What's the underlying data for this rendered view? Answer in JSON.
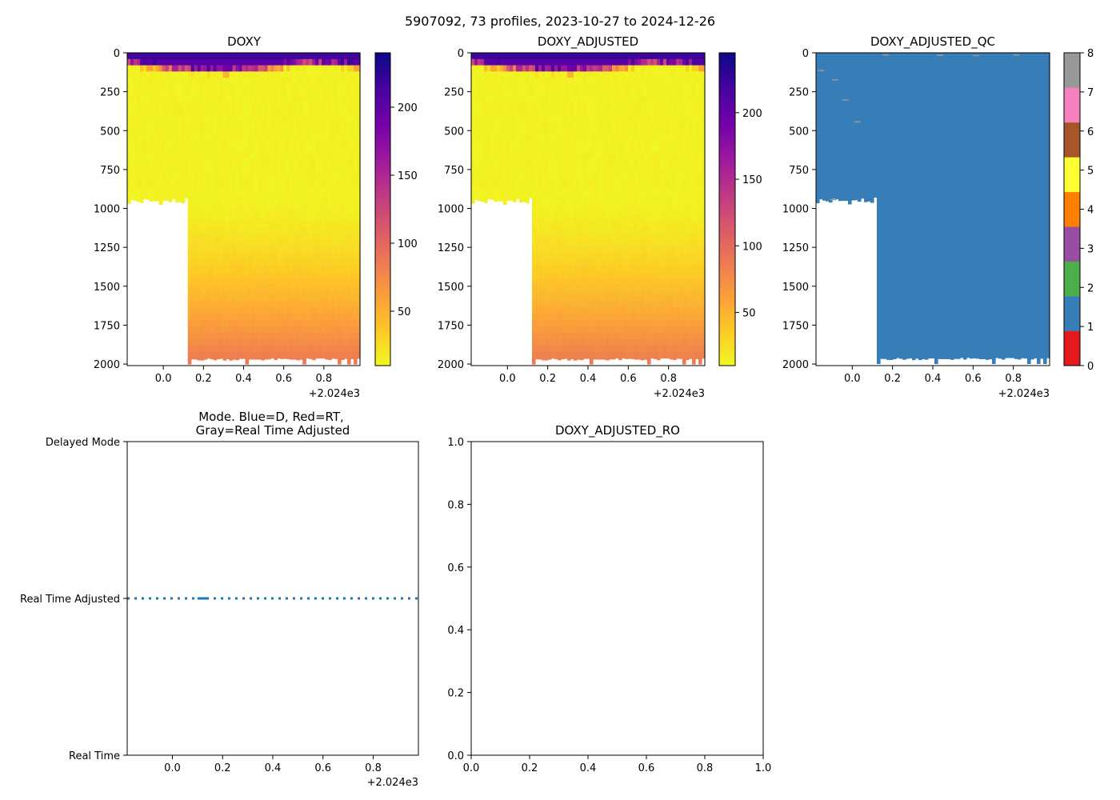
{
  "figure": {
    "suptitle": "5907092, 73 profiles, 2023-10-27 to 2024-12-26"
  },
  "colors": {
    "axis": "#000000",
    "qc_fill": "#377eb8",
    "mode_line": "#1f77b4",
    "qc_outlier": "#999999",
    "plasma_stops": [
      "#0d0887",
      "#46039f",
      "#7201a8",
      "#9c179e",
      "#bd3786",
      "#d8576b",
      "#ed7953",
      "#fb9f3a",
      "#fdca26",
      "#f0f921"
    ],
    "qc_colormap": [
      "#e41a1c",
      "#377eb8",
      "#4daf4a",
      "#984ea3",
      "#ff7f00",
      "#ffff33",
      "#a65628",
      "#f781bf",
      "#999999"
    ]
  },
  "chart_data": [
    {
      "id": "doxy",
      "type": "heatmap",
      "title": "DOXY",
      "x_offset_label": "+2.024e3",
      "xlim": [
        -0.18,
        0.98
      ],
      "xticks": [
        "0.0",
        "0.2",
        "0.4",
        "0.6",
        "0.8"
      ],
      "xtick_values": [
        0.0,
        0.2,
        0.4,
        0.6,
        0.8
      ],
      "ylim": [
        2010,
        0
      ],
      "yticks": [
        "0",
        "250",
        "500",
        "750",
        "1000",
        "1250",
        "1500",
        "1750",
        "2000"
      ],
      "ytick_values": [
        0,
        250,
        500,
        750,
        1000,
        1250,
        1500,
        1750,
        2000
      ],
      "profile_time_range": [
        -0.18,
        0.98
      ],
      "shallow_profiles_end": 0.115,
      "shallow_profile_max_depth": 975,
      "deep_profile_max_depth": 1975,
      "value_range": [
        10,
        240
      ],
      "colorbar": {
        "cmap": "plasma_r",
        "ticks": [
          "50",
          "100",
          "150",
          "200"
        ],
        "tick_values": [
          50,
          100,
          150,
          200
        ],
        "range": [
          10,
          240
        ]
      }
    },
    {
      "id": "doxy_adjusted",
      "type": "heatmap",
      "title": "DOXY_ADJUSTED",
      "x_offset_label": "+2.024e3",
      "xlim": [
        -0.18,
        0.98
      ],
      "xticks": [
        "0.0",
        "0.2",
        "0.4",
        "0.6",
        "0.8"
      ],
      "xtick_values": [
        0.0,
        0.2,
        0.4,
        0.6,
        0.8
      ],
      "ylim": [
        2010,
        0
      ],
      "yticks": [
        "0",
        "250",
        "500",
        "750",
        "1000",
        "1250",
        "1500",
        "1750",
        "2000"
      ],
      "ytick_values": [
        0,
        250,
        500,
        750,
        1000,
        1250,
        1500,
        1750,
        2000
      ],
      "shallow_profiles_end": 0.115,
      "shallow_profile_max_depth": 975,
      "deep_profile_max_depth": 1975,
      "value_range": [
        10,
        245
      ],
      "colorbar": {
        "cmap": "plasma_r",
        "ticks": [
          "50",
          "100",
          "150",
          "200"
        ],
        "tick_values": [
          50,
          100,
          150,
          200
        ],
        "range": [
          10,
          245
        ]
      }
    },
    {
      "id": "doxy_adjusted_qc",
      "type": "heatmap",
      "title": "DOXY_ADJUSTED_QC",
      "x_offset_label": "+2.024e3",
      "xlim": [
        -0.18,
        0.98
      ],
      "xticks": [
        "0.0",
        "0.2",
        "0.4",
        "0.6",
        "0.8"
      ],
      "xtick_values": [
        0.0,
        0.2,
        0.4,
        0.6,
        0.8
      ],
      "ylim": [
        2010,
        0
      ],
      "yticks": [
        "0",
        "250",
        "500",
        "750",
        "1000",
        "1250",
        "1500",
        "1750",
        "2000"
      ],
      "ytick_values": [
        0,
        250,
        500,
        750,
        1000,
        1250,
        1500,
        1750,
        2000
      ],
      "shallow_profiles_end": 0.115,
      "shallow_profile_max_depth": 975,
      "deep_profile_max_depth": 1975,
      "dominant_flag": 1,
      "colorbar": {
        "cmap": "qc_categorical",
        "ticks": [
          "0",
          "1",
          "2",
          "3",
          "4",
          "5",
          "6",
          "7",
          "8"
        ],
        "tick_values": [
          0,
          1,
          2,
          3,
          4,
          5,
          6,
          7,
          8
        ],
        "range": [
          0,
          8
        ]
      }
    },
    {
      "id": "mode",
      "type": "line",
      "title_lines": [
        "Mode. Blue=D, Red=RT,",
        "Gray=Real Time Adjusted"
      ],
      "x_offset_label": "+2.024e3",
      "xlim": [
        -0.18,
        0.98
      ],
      "xticks": [
        "0.0",
        "0.2",
        "0.4",
        "0.6",
        "0.8"
      ],
      "xtick_values": [
        0.0,
        0.2,
        0.4,
        0.6,
        0.8
      ],
      "ylim": [
        0,
        2
      ],
      "yticks": [
        "Real Time",
        "Real Time Adjusted",
        "Delayed Mode"
      ],
      "ytick_values": [
        0,
        1,
        2
      ],
      "series": [
        {
          "name": "mode",
          "x_start": -0.18,
          "x_end": 0.98,
          "profiles": 73,
          "y": 1,
          "style": "dotted"
        }
      ]
    },
    {
      "id": "doxy_adjusted_ro",
      "type": "line",
      "title": "DOXY_ADJUSTED_RO",
      "xlim": [
        0,
        1
      ],
      "ylim": [
        0,
        1
      ],
      "xticks": [
        "0.0",
        "0.2",
        "0.4",
        "0.6",
        "0.8",
        "1.0"
      ],
      "xtick_values": [
        0,
        0.2,
        0.4,
        0.6,
        0.8,
        1.0
      ],
      "yticks": [
        "0.0",
        "0.2",
        "0.4",
        "0.6",
        "0.8",
        "1.0"
      ],
      "ytick_values": [
        0,
        0.2,
        0.4,
        0.6,
        0.8,
        1.0
      ],
      "series": []
    }
  ]
}
